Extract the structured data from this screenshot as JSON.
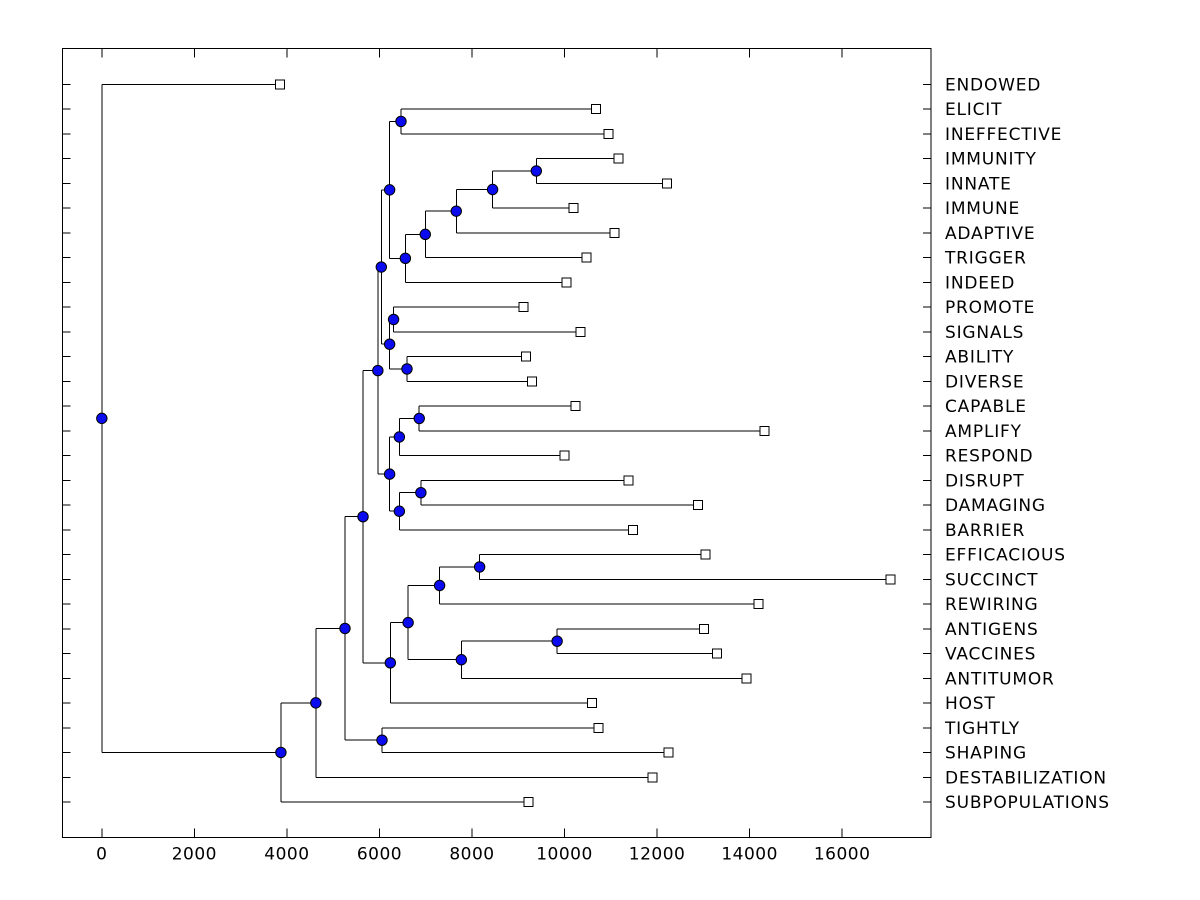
{
  "figure": {
    "kind": "dendrogram-figure",
    "background": "#ffffff"
  },
  "chart_data": {
    "type": "dendrogram",
    "orientation": "root-left-leaves-right",
    "title": "",
    "xlabel": "",
    "ylabel": "",
    "grid": false,
    "legend": null,
    "x_axis": {
      "tick_values": [
        0,
        2000,
        4000,
        6000,
        8000,
        10000,
        12000,
        14000,
        16000
      ],
      "tick_labels": [
        "0",
        "2000",
        "4000",
        "6000",
        "8000",
        "10000",
        "12000",
        "14000",
        "16000"
      ],
      "range": [
        -850,
        17920
      ]
    },
    "y_axis": {
      "rows": 30,
      "tick_labels_side": "right-outside"
    },
    "colors": {
      "branch": "#000000",
      "internal_node_fill": "#0b0bef",
      "internal_node_edge": "#000000",
      "leaf_marker_fill": "#ffffff",
      "leaf_marker_edge": "#000000",
      "background": "#ffffff",
      "text": "#000000"
    },
    "tree": {
      "d": 0,
      "children": [
        {
          "label": "ENDOWED",
          "d": 3855
        },
        {
          "d": 3870,
          "children": [
            {
              "d": 4625,
              "children": [
                {
                  "d": 5255,
                  "children": [
                    {
                      "d": 5645,
                      "children": [
                        {
                          "d": 5965,
                          "children": [
                            {
                              "d": 6040,
                              "children": [
                                {
                                  "d": 6220,
                                  "children": [
                                    {
                                      "d": 6465,
                                      "children": [
                                        {
                                          "label": "ELICIT",
                                          "d": 10680
                                        },
                                        {
                                          "label": "INEFFECTIVE",
                                          "d": 10955
                                        }
                                      ]
                                    },
                                    {
                                      "d": 6560,
                                      "children": [
                                        {
                                          "d": 6990,
                                          "children": [
                                            {
                                              "d": 7660,
                                              "children": [
                                                {
                                                  "d": 8445,
                                                  "children": [
                                                    {
                                                      "d": 9390,
                                                      "children": [
                                                        {
                                                          "label": "IMMUNITY",
                                                          "d": 11170
                                                        },
                                                        {
                                                          "label": "INNATE",
                                                          "d": 12215
                                                        }
                                                      ]
                                                    },
                                                    {
                                                      "label": "IMMUNE",
                                                      "d": 10195
                                                    }
                                                  ]
                                                },
                                                {
                                                  "label": "ADAPTIVE",
                                                  "d": 11085
                                                }
                                              ]
                                            },
                                            {
                                              "label": "TRIGGER",
                                              "d": 10470
                                            }
                                          ]
                                        },
                                        {
                                          "label": "INDEED",
                                          "d": 10040
                                        }
                                      ]
                                    }
                                  ]
                                },
                                {
                                  "d": 6220,
                                  "children": [
                                    {
                                      "d": 6305,
                                      "children": [
                                        {
                                          "label": "PROMOTE",
                                          "d": 9115
                                        },
                                        {
                                          "label": "SIGNALS",
                                          "d": 10350
                                        }
                                      ]
                                    },
                                    {
                                      "d": 6595,
                                      "children": [
                                        {
                                          "label": "ABILITY",
                                          "d": 9170
                                        },
                                        {
                                          "label": "DIVERSE",
                                          "d": 9295
                                        }
                                      ]
                                    }
                                  ]
                                }
                              ]
                            },
                            {
                              "d": 6220,
                              "children": [
                                {
                                  "d": 6430,
                                  "children": [
                                    {
                                      "d": 6860,
                                      "children": [
                                        {
                                          "label": "CAPABLE",
                                          "d": 10235
                                        },
                                        {
                                          "label": "AMPLIFY",
                                          "d": 14325
                                        }
                                      ]
                                    },
                                    {
                                      "label": "RESPOND",
                                      "d": 10000
                                    }
                                  ]
                                },
                                {
                                  "d": 6430,
                                  "children": [
                                    {
                                      "d": 6895,
                                      "children": [
                                        {
                                          "label": "DISRUPT",
                                          "d": 11385
                                        },
                                        {
                                          "label": "DAMAGING",
                                          "d": 12880
                                        }
                                      ]
                                    },
                                    {
                                      "label": "BARRIER",
                                      "d": 11475
                                    }
                                  ]
                                }
                              ]
                            }
                          ]
                        },
                        {
                          "d": 6235,
                          "children": [
                            {
                              "d": 6620,
                              "children": [
                                {
                                  "d": 7300,
                                  "children": [
                                    {
                                      "d": 8165,
                                      "children": [
                                        {
                                          "label": "EFFICACIOUS",
                                          "d": 13045
                                        },
                                        {
                                          "label": "SUCCINCT",
                                          "d": 17045
                                        }
                                      ]
                                    },
                                    {
                                      "label": "REWIRING",
                                      "d": 14195
                                    }
                                  ]
                                },
                                {
                                  "d": 7770,
                                  "children": [
                                    {
                                      "d": 9840,
                                      "children": [
                                        {
                                          "label": "ANTIGENS",
                                          "d": 13010
                                        },
                                        {
                                          "label": "VACCINES",
                                          "d": 13290
                                        }
                                      ]
                                    },
                                    {
                                      "label": "ANTITUMOR",
                                      "d": 13935
                                    }
                                  ]
                                }
                              ]
                            },
                            {
                              "label": "HOST",
                              "d": 10595
                            }
                          ]
                        }
                      ]
                    },
                    {
                      "d": 6055,
                      "children": [
                        {
                          "label": "TIGHTLY",
                          "d": 10735
                        },
                        {
                          "label": "SHAPING",
                          "d": 12250
                        }
                      ]
                    }
                  ]
                },
                {
                  "label": "DESTABILIZATION",
                  "d": 11905
                }
              ]
            },
            {
              "label": "SUBPOPULATIONS",
              "d": 9225
            }
          ]
        }
      ]
    }
  }
}
